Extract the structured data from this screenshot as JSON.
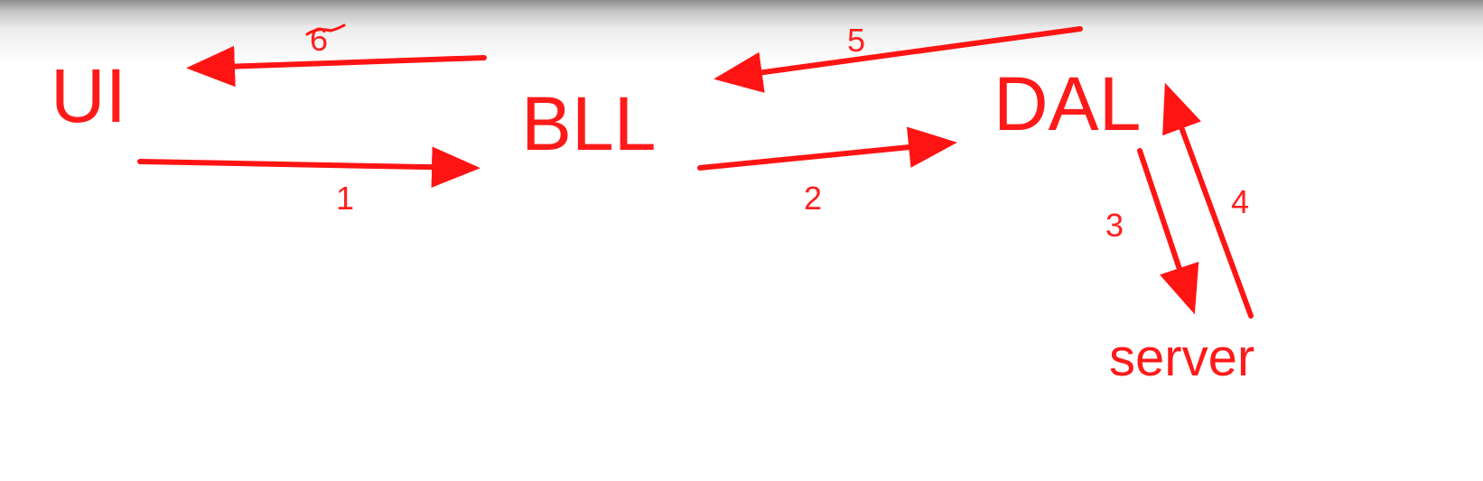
{
  "diagram": {
    "nodes": {
      "ui": "UI",
      "bll": "BLL",
      "dal": "DAL",
      "server": "server"
    },
    "edges": [
      {
        "label": "1",
        "from": "UI",
        "to": "BLL"
      },
      {
        "label": "2",
        "from": "BLL",
        "to": "DAL"
      },
      {
        "label": "3",
        "from": "DAL",
        "to": "server"
      },
      {
        "label": "4",
        "from": "server",
        "to": "DAL"
      },
      {
        "label": "5",
        "from": "DAL",
        "to": "BLL"
      },
      {
        "label": "6",
        "from": "BLL",
        "to": "UI"
      }
    ],
    "color": "#ff1414"
  }
}
